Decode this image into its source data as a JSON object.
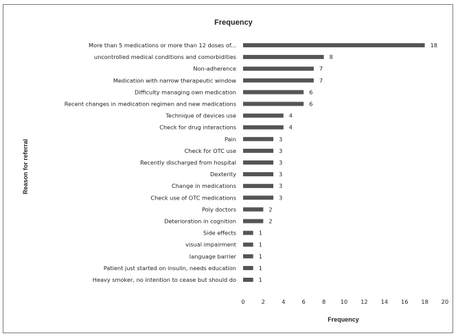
{
  "chart_data": {
    "type": "bar",
    "orientation": "horizontal",
    "title": "Frequency",
    "xlabel": "Frequency",
    "ylabel": "Reason for referral",
    "xlim": [
      0,
      20
    ],
    "xticks": [
      0,
      2,
      4,
      6,
      8,
      10,
      12,
      14,
      16,
      18,
      20
    ],
    "grid": false,
    "legend": "none",
    "bar_color": "#555555",
    "categories": [
      "More than 5 medications or more than 12 doses of...",
      "uncontrolled medical conditions and comorbidities",
      "Non-adherence",
      "Medication with narrow therapeutic window",
      "Difficulty managing own medication",
      "Recent changes in medication regimen and new medications",
      "Technique of devices use",
      "Check for drug interactions",
      "Pain",
      "Check for OTC use",
      "Recently discharged from hospital",
      "Dexterity",
      "Change in medications",
      "Check use of OTC medications",
      "Poly doctors",
      "Deterioration in cognition",
      "Side effects",
      "visual impairment",
      "language barrier",
      "Patient just started on insulin, needs education",
      "Heavy smoker, no intention to cease but should do"
    ],
    "values": [
      18,
      8,
      7,
      7,
      6,
      6,
      4,
      4,
      3,
      3,
      3,
      3,
      3,
      3,
      2,
      2,
      1,
      1,
      1,
      1,
      1
    ]
  }
}
